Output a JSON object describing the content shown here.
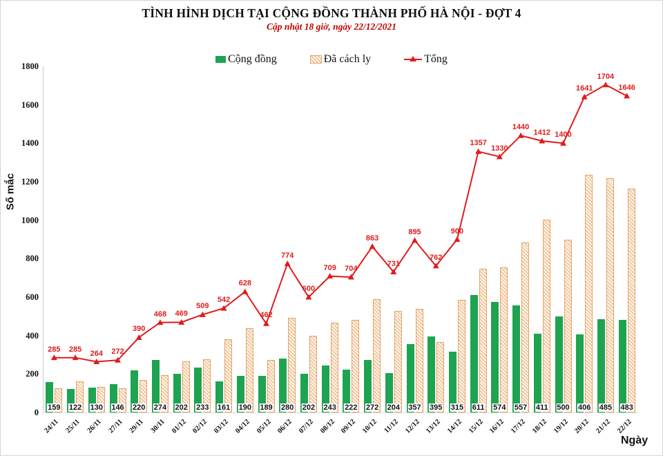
{
  "title": "TÌNH HÌNH DỊCH TẠI CỘNG ĐỒNG THÀNH PHỐ HÀ NỘI - ĐỢT 4",
  "subtitle": "Cập nhật 18 giờ, ngày 22/12/2021",
  "legend": {
    "community": "Cộng đồng",
    "quarantined": "Đã cách ly",
    "total": "Tổng"
  },
  "axes": {
    "y_label": "Số mắc",
    "x_label": "Ngày",
    "y_ticks": [
      0,
      200,
      400,
      600,
      800,
      1000,
      1200,
      1400,
      1600,
      1800
    ]
  },
  "colors": {
    "community_green": "#1ea351",
    "quarantined_tan_fill": "#fdf1e2",
    "quarantined_tan_line": "#e9b183",
    "quarantined_tan_border": "#e2a368",
    "total_red": "#e01b1b",
    "subtitle_red": "#c00000"
  },
  "chart_data": {
    "type": "bar",
    "note_line_series": "Tổng is drawn as a line with triangle markers and red data labels; bars are clustered per category",
    "categories": [
      "24/11",
      "25/11",
      "26/11",
      "27/11",
      "29/11",
      "30/11",
      "01/12",
      "02/12",
      "03/12",
      "04/12",
      "05/12",
      "06/12",
      "07/12",
      "08/12",
      "09/12",
      "10/12",
      "11/12",
      "12/12",
      "13/12",
      "14/12",
      "15/12",
      "16/12",
      "17/12",
      "18/12",
      "19/12",
      "20/12",
      "21/12",
      "22/12"
    ],
    "series": [
      {
        "name": "Cộng đồng",
        "type": "bar",
        "values": [
          159,
          122,
          130,
          146,
          220,
          274,
          202,
          233,
          161,
          190,
          189,
          280,
          202,
          243,
          222,
          272,
          204,
          357,
          395,
          315,
          611,
          574,
          557,
          411,
          500,
          406,
          485,
          483
        ]
      },
      {
        "name": "Đã cách ly",
        "type": "bar",
        "values": [
          126,
          163,
          134,
          126,
          170,
          194,
          267,
          276,
          381,
          438,
          273,
          494,
          398,
          466,
          482,
          591,
          527,
          538,
          367,
          585,
          746,
          756,
          883,
          1001,
          900,
          1235,
          1219,
          1163
        ]
      },
      {
        "name": "Tổng",
        "type": "line",
        "values": [
          285,
          285,
          264,
          272,
          390,
          468,
          469,
          509,
          542,
          628,
          462,
          774,
          600,
          709,
          704,
          863,
          731,
          895,
          762,
          900,
          1357,
          1330,
          1440,
          1412,
          1400,
          1641,
          1704,
          1646
        ]
      }
    ],
    "title": "TÌNH HÌNH DỊCH TẠI CỘNG ĐỒNG THÀNH PHỐ HÀ NỘI - ĐỢT 4",
    "xlabel": "Ngày",
    "ylabel": "Số mắc",
    "ylim": [
      0,
      1800
    ],
    "grid": false,
    "legend_position": "top-center"
  }
}
